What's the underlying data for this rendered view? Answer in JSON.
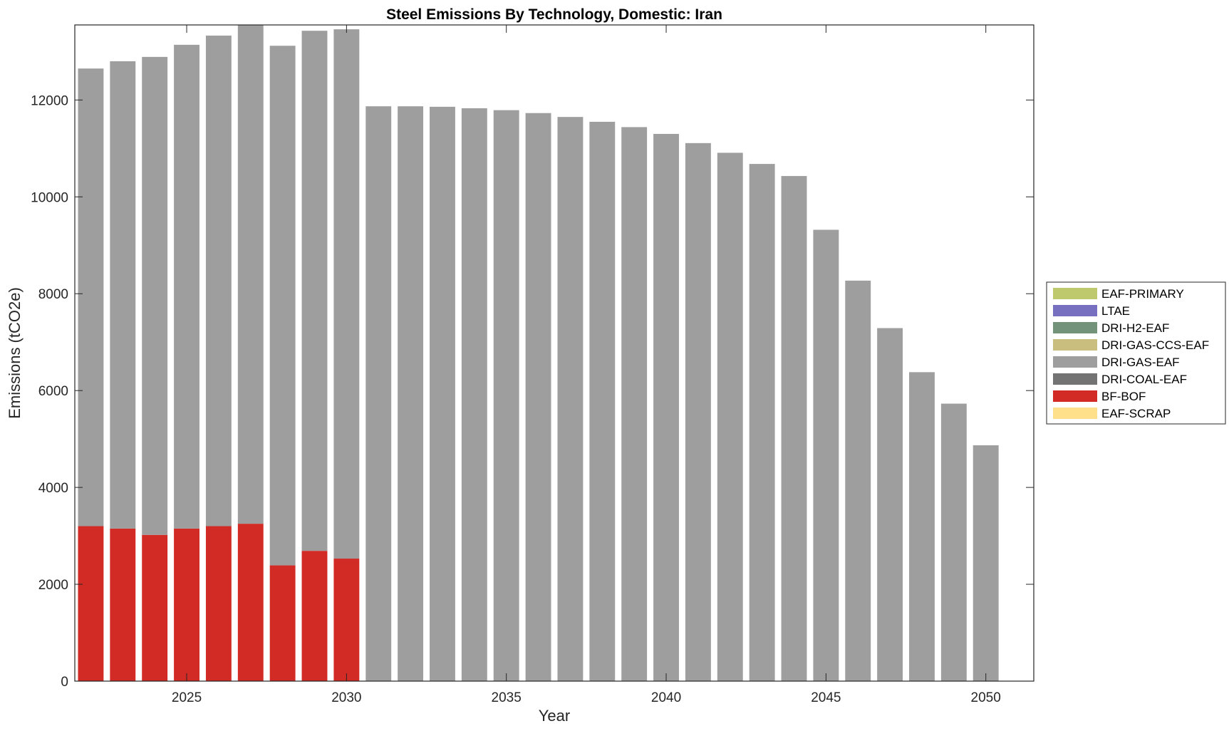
{
  "chart_data": {
    "type": "bar",
    "stacked": true,
    "title": "Steel Emissions By Technology, Domestic: Iran",
    "xlabel": "Year",
    "ylabel": "Emissions (tCO2e)",
    "xlim": [
      2021.5,
      2051.5
    ],
    "ylim": [
      0,
      13550
    ],
    "xticks": [
      2025,
      2030,
      2035,
      2040,
      2045,
      2050
    ],
    "yticks": [
      0,
      2000,
      4000,
      6000,
      8000,
      10000,
      12000
    ],
    "grid": false,
    "legend_position": "right",
    "x": [
      2022,
      2023,
      2024,
      2025,
      2026,
      2027,
      2028,
      2029,
      2030,
      2031,
      2032,
      2033,
      2034,
      2035,
      2036,
      2037,
      2038,
      2039,
      2040,
      2041,
      2042,
      2043,
      2044,
      2045,
      2046,
      2047,
      2048,
      2049,
      2050
    ],
    "series": [
      {
        "name": "EAF-SCRAP",
        "color": "#FFE08A",
        "values": [
          0,
          0,
          0,
          0,
          0,
          0,
          0,
          0,
          0,
          0,
          0,
          0,
          0,
          0,
          0,
          0,
          0,
          0,
          0,
          0,
          0,
          0,
          0,
          0,
          0,
          0,
          0,
          0,
          0
        ]
      },
      {
        "name": "BF-BOF",
        "color": "#D22A24",
        "values": [
          3200,
          3150,
          3020,
          3150,
          3200,
          3250,
          2390,
          2690,
          2530,
          0,
          0,
          0,
          0,
          0,
          0,
          0,
          0,
          0,
          0,
          0,
          0,
          0,
          0,
          0,
          0,
          0,
          0,
          0,
          0
        ]
      },
      {
        "name": "DRI-COAL-EAF",
        "color": "#737373",
        "values": [
          0,
          0,
          0,
          0,
          0,
          0,
          0,
          0,
          0,
          0,
          0,
          0,
          0,
          0,
          0,
          0,
          0,
          0,
          0,
          0,
          0,
          0,
          0,
          0,
          0,
          0,
          0,
          0,
          0
        ]
      },
      {
        "name": "DRI-GAS-EAF",
        "color": "#9E9E9E",
        "values": [
          9450,
          9650,
          9870,
          9990,
          10130,
          10300,
          10730,
          10740,
          10930,
          11870,
          11870,
          11860,
          11830,
          11790,
          11730,
          11650,
          11550,
          11440,
          11300,
          11110,
          10910,
          10680,
          10430,
          9320,
          8270,
          7290,
          6380,
          5730,
          4870
        ]
      },
      {
        "name": "DRI-GAS-CCS-EAF",
        "color": "#C9BE7E",
        "values": [
          0,
          0,
          0,
          0,
          0,
          0,
          0,
          0,
          0,
          0,
          0,
          0,
          0,
          0,
          0,
          0,
          0,
          0,
          0,
          0,
          0,
          0,
          0,
          0,
          0,
          0,
          0,
          0,
          0
        ]
      },
      {
        "name": "DRI-H2-EAF",
        "color": "#73947A",
        "values": [
          0,
          0,
          0,
          0,
          0,
          0,
          0,
          0,
          0,
          0,
          0,
          0,
          0,
          0,
          0,
          0,
          0,
          0,
          0,
          0,
          0,
          0,
          0,
          0,
          0,
          0,
          0,
          0,
          0
        ]
      },
      {
        "name": "LTAE",
        "color": "#7770C0",
        "values": [
          0,
          0,
          0,
          0,
          0,
          0,
          0,
          0,
          0,
          0,
          0,
          0,
          0,
          0,
          0,
          0,
          0,
          0,
          0,
          0,
          0,
          0,
          0,
          0,
          0,
          0,
          0,
          0,
          0
        ]
      },
      {
        "name": "EAF-PRIMARY",
        "color": "#BEC96E",
        "values": [
          0,
          0,
          0,
          0,
          0,
          0,
          0,
          0,
          0,
          0,
          0,
          0,
          0,
          0,
          0,
          0,
          0,
          0,
          0,
          0,
          0,
          0,
          0,
          0,
          0,
          0,
          0,
          0,
          0
        ]
      }
    ],
    "legend_order": [
      "EAF-PRIMARY",
      "LTAE",
      "DRI-H2-EAF",
      "DRI-GAS-CCS-EAF",
      "DRI-GAS-EAF",
      "DRI-COAL-EAF",
      "BF-BOF",
      "EAF-SCRAP"
    ]
  }
}
